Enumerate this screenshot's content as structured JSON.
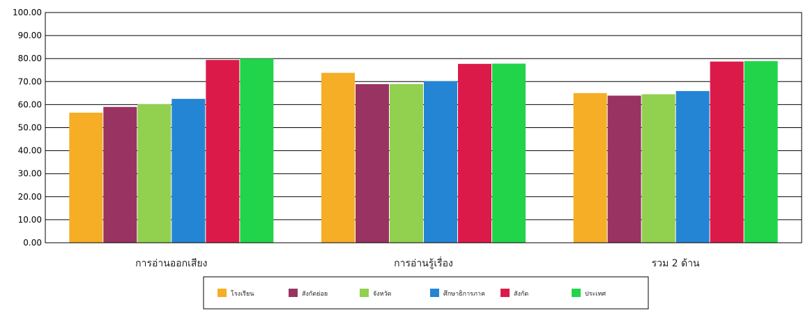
{
  "chart_data": {
    "type": "bar",
    "categories": [
      "การอ่านออกเสียง",
      "การอ่านรู้เรื่อง",
      "รวม 2 ด้าน"
    ],
    "series": [
      {
        "name": "โรงเรียน",
        "color": "#F5AE25",
        "values": [
          56.5,
          73.8,
          65.0
        ]
      },
      {
        "name": "สังกัดย่อย",
        "color": "#993362",
        "values": [
          59.0,
          68.9,
          63.9
        ]
      },
      {
        "name": "จังหวัด",
        "color": "#92D050",
        "values": [
          60.2,
          68.9,
          64.5
        ]
      },
      {
        "name": "ศึกษาธิการภาค",
        "color": "#2485D4",
        "values": [
          62.5,
          70.2,
          65.9
        ]
      },
      {
        "name": "สังกัด",
        "color": "#DC1A4A",
        "values": [
          79.4,
          77.7,
          78.7
        ]
      },
      {
        "name": "ประเทศ",
        "color": "#22D44A",
        "values": [
          80.0,
          77.8,
          78.9
        ]
      }
    ],
    "yticks": [
      "0.00",
      "10.00",
      "20.00",
      "30.00",
      "40.00",
      "50.00",
      "60.00",
      "70.00",
      "80.00",
      "90.00",
      "100.00"
    ],
    "ylim": [
      0,
      100
    ],
    "grid": true,
    "legend_position": "bottom",
    "title": "",
    "xlabel": "",
    "ylabel": ""
  }
}
